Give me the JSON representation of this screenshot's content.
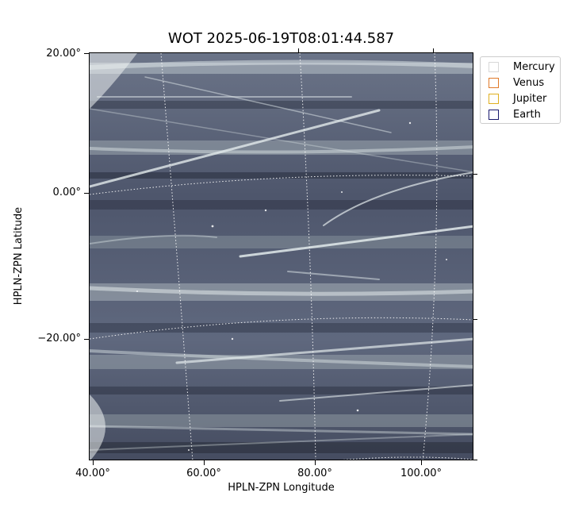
{
  "title": "WOT 2025-06-19T08:01:44.587",
  "axes": {
    "xlabel": "HPLN-ZPN Longitude",
    "ylabel": "HPLN-ZPN Latitude",
    "yticks": [
      "20.00°",
      "0.00°",
      "−20.00°"
    ],
    "xticks": [
      "40.00°",
      "60.00°",
      "80.00°",
      "100.00°"
    ]
  },
  "legend": {
    "items": [
      {
        "label": "Mercury",
        "color": "#d8d8d8"
      },
      {
        "label": "Venus",
        "color": "#e07a2a"
      },
      {
        "label": "Jupiter",
        "color": "#e0b020"
      },
      {
        "label": "Earth",
        "color": "#1a1a6e"
      }
    ]
  },
  "image": {
    "background_color": "#5a6278",
    "streak_color": "#dde6e8"
  }
}
